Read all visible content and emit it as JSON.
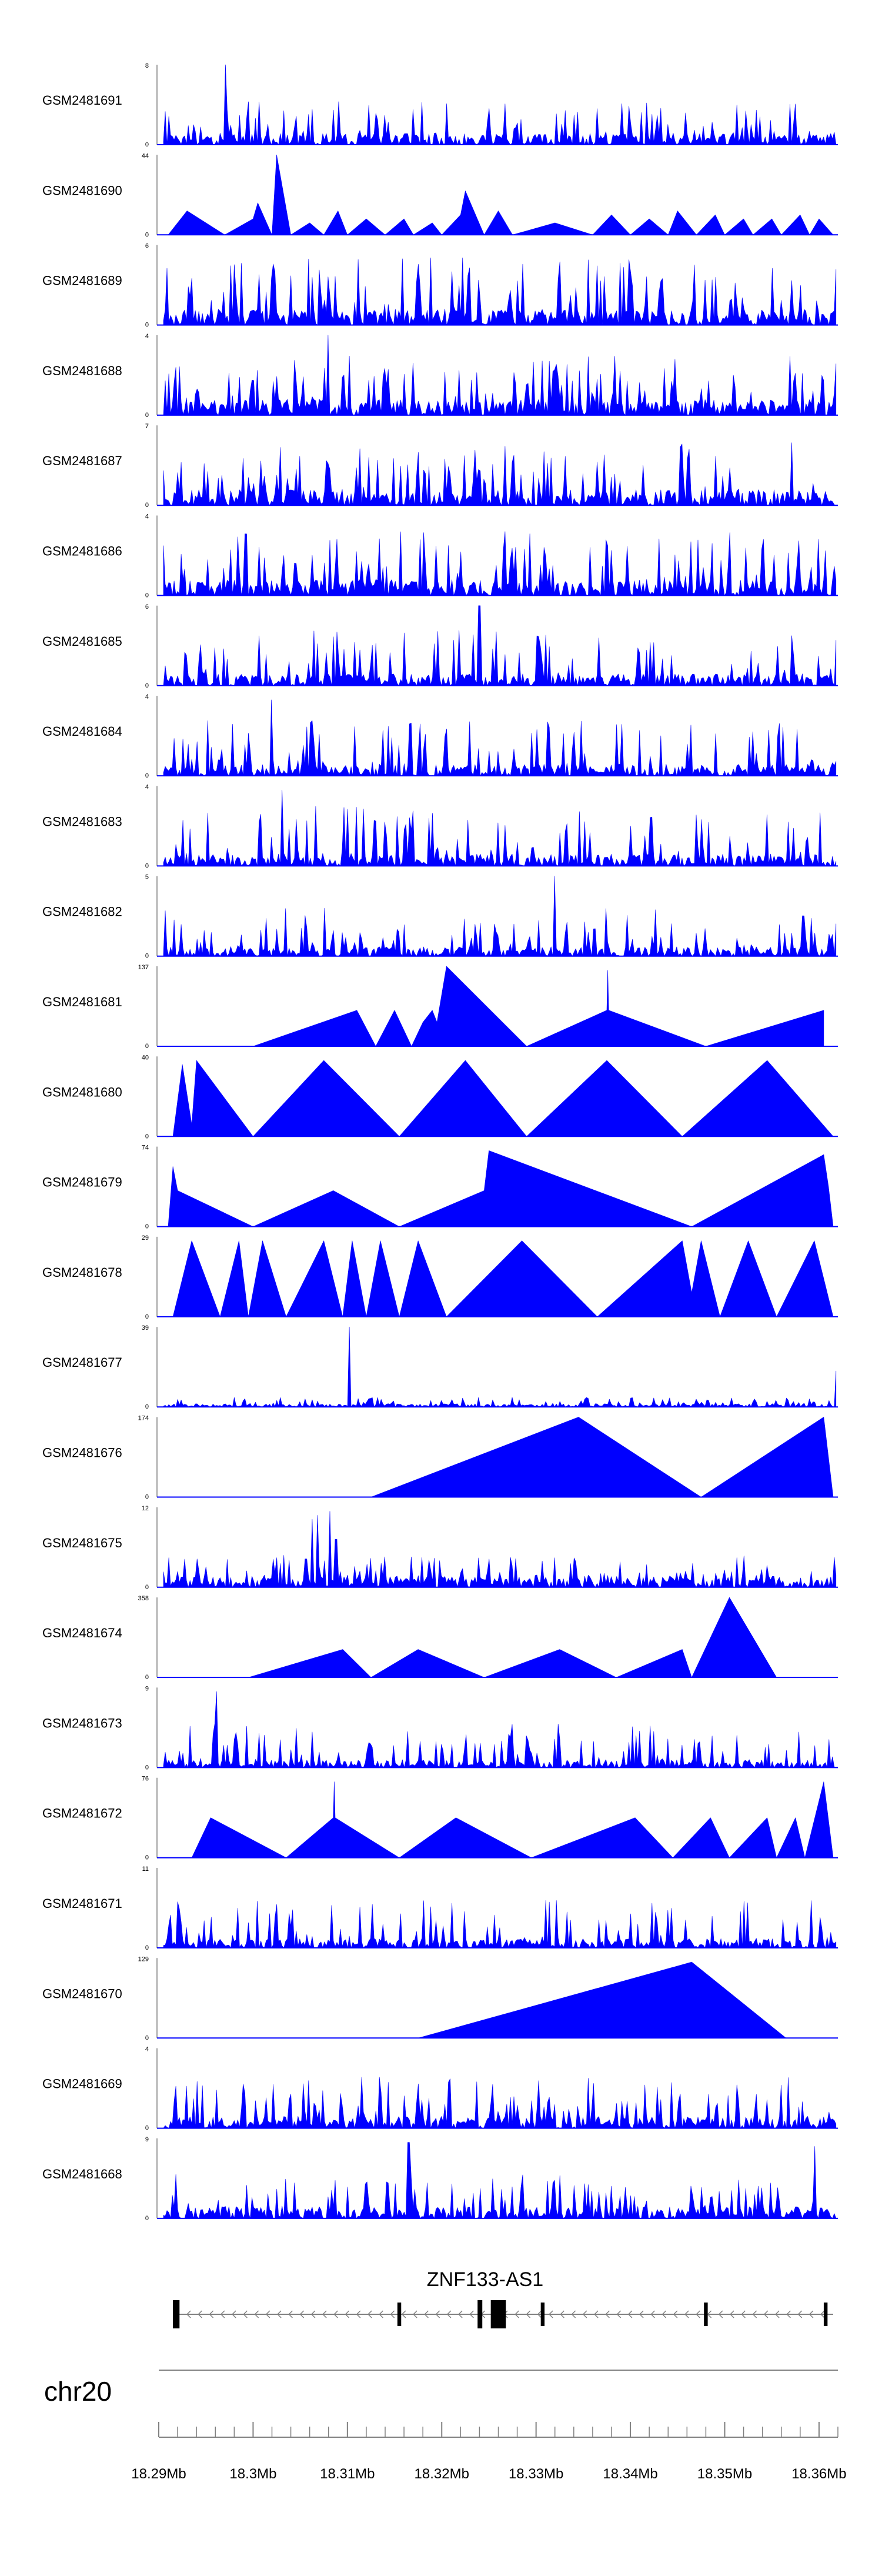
{
  "chart_data": {
    "type": "area",
    "tracks": [
      {
        "name": "GSM2481691",
        "ymax": "8",
        "ymin": "0",
        "kind": "dense",
        "base": 0.15,
        "spike": 0.55,
        "seed": 91,
        "peaks": [
          [
            18.297,
            1.0
          ]
        ]
      },
      {
        "name": "GSM2481690",
        "ymax": "44",
        "ymin": "0",
        "kind": "sparse",
        "start": 18.291,
        "end": 18.3615,
        "spike": 0.25,
        "seed": 90,
        "pts": [
          [
            18.291,
            0
          ],
          [
            18.293,
            0.3
          ],
          [
            18.297,
            0
          ],
          [
            18.3,
            0.2
          ],
          [
            18.3005,
            0.4
          ],
          [
            18.302,
            0
          ],
          [
            18.3025,
            1.0
          ],
          [
            18.304,
            0
          ],
          [
            18.306,
            0.15
          ],
          [
            18.3075,
            0
          ],
          [
            18.309,
            0.3
          ],
          [
            18.31,
            0
          ],
          [
            18.312,
            0.2
          ],
          [
            18.314,
            0
          ],
          [
            18.316,
            0.2
          ],
          [
            18.317,
            0
          ],
          [
            18.319,
            0.15
          ],
          [
            18.32,
            0
          ],
          [
            18.322,
            0.25
          ],
          [
            18.3225,
            0.55
          ],
          [
            18.3245,
            0
          ],
          [
            18.326,
            0.3
          ],
          [
            18.3275,
            0
          ],
          [
            18.332,
            0.15
          ],
          [
            18.336,
            0
          ],
          [
            18.338,
            0.25
          ],
          [
            18.34,
            0
          ],
          [
            18.342,
            0.2
          ],
          [
            18.344,
            0
          ],
          [
            18.345,
            0.3
          ],
          [
            18.347,
            0
          ],
          [
            18.349,
            0.25
          ],
          [
            18.35,
            0
          ],
          [
            18.352,
            0.2
          ],
          [
            18.353,
            0
          ],
          [
            18.355,
            0.2
          ],
          [
            18.356,
            0
          ],
          [
            18.358,
            0.25
          ],
          [
            18.359,
            0
          ],
          [
            18.36,
            0.2
          ],
          [
            18.3615,
            0
          ]
        ]
      },
      {
        "name": "GSM2481689",
        "ymax": "6",
        "ymin": "0",
        "kind": "dense",
        "base": 0.2,
        "spike": 0.85,
        "seed": 89,
        "peaks": []
      },
      {
        "name": "GSM2481688",
        "ymax": "4",
        "ymin": "0",
        "kind": "dense",
        "base": 0.2,
        "spike": 0.75,
        "seed": 88,
        "peaks": [
          [
            18.308,
            1.0
          ]
        ]
      },
      {
        "name": "GSM2481687",
        "ymax": "7",
        "ymin": "0",
        "kind": "dense",
        "base": 0.2,
        "spike": 0.8,
        "seed": 87,
        "peaks": []
      },
      {
        "name": "GSM2481686",
        "ymax": "4",
        "ymin": "0",
        "kind": "dense",
        "base": 0.2,
        "spike": 0.8,
        "seed": 86,
        "peaks": []
      },
      {
        "name": "GSM2481685",
        "ymax": "6",
        "ymin": "0",
        "kind": "dense",
        "base": 0.15,
        "spike": 0.7,
        "seed": 85,
        "peaks": [
          [
            18.324,
            1.0
          ]
        ]
      },
      {
        "name": "GSM2481684",
        "ymax": "4",
        "ymin": "0",
        "kind": "dense",
        "base": 0.15,
        "spike": 0.7,
        "seed": 84,
        "peaks": [
          [
            18.302,
            0.95
          ]
        ]
      },
      {
        "name": "GSM2481683",
        "ymax": "4",
        "ymin": "0",
        "kind": "dense",
        "base": 0.15,
        "spike": 0.75,
        "seed": 83,
        "peaks": [
          [
            18.303,
            0.95
          ]
        ]
      },
      {
        "name": "GSM2481682",
        "ymax": "5",
        "ymin": "0",
        "kind": "dense",
        "base": 0.12,
        "spike": 0.6,
        "seed": 82,
        "peaks": [
          [
            18.332,
            1.0
          ]
        ]
      },
      {
        "name": "GSM2481681",
        "ymax": "137",
        "ymin": "0",
        "kind": "poly",
        "pts": [
          [
            18.3,
            0
          ],
          [
            18.311,
            0.45
          ],
          [
            18.313,
            0
          ],
          [
            18.315,
            0.45
          ],
          [
            18.3168,
            0
          ],
          [
            18.318,
            0.3
          ],
          [
            18.319,
            0.45
          ],
          [
            18.3195,
            0.3
          ],
          [
            18.3205,
            1.0
          ],
          [
            18.329,
            0
          ],
          [
            18.3375,
            0.45
          ],
          [
            18.3376,
            0.95
          ],
          [
            18.3377,
            0.45
          ],
          [
            18.348,
            0
          ],
          [
            18.3605,
            0.45
          ],
          [
            18.3605,
            0
          ]
        ]
      },
      {
        "name": "GSM2481680",
        "ymax": "40",
        "ymin": "0",
        "kind": "poly",
        "pts": [
          [
            18.2915,
            0
          ],
          [
            18.2925,
            0.9
          ],
          [
            18.2935,
            0.15
          ],
          [
            18.294,
            0.95
          ],
          [
            18.3,
            0
          ],
          [
            18.3075,
            0.95
          ],
          [
            18.3155,
            0
          ],
          [
            18.3225,
            0.95
          ],
          [
            18.329,
            0
          ],
          [
            18.3375,
            0.95
          ],
          [
            18.3455,
            0
          ],
          [
            18.3545,
            0.95
          ],
          [
            18.3615,
            0
          ]
        ]
      },
      {
        "name": "GSM2481679",
        "ymax": "74",
        "ymin": "0",
        "kind": "poly",
        "pts": [
          [
            18.291,
            0
          ],
          [
            18.2915,
            0.75
          ],
          [
            18.292,
            0.45
          ],
          [
            18.3,
            0
          ],
          [
            18.3085,
            0.45
          ],
          [
            18.3155,
            0
          ],
          [
            18.3245,
            0.45
          ],
          [
            18.325,
            0.95
          ],
          [
            18.3465,
            0
          ],
          [
            18.3605,
            0.9
          ],
          [
            18.361,
            0.5
          ],
          [
            18.3615,
            0
          ]
        ]
      },
      {
        "name": "GSM2481678",
        "ymax": "29",
        "ymin": "0",
        "kind": "poly",
        "pts": [
          [
            18.2915,
            0
          ],
          [
            18.2935,
            0.95
          ],
          [
            18.2965,
            0
          ],
          [
            18.2985,
            0.95
          ],
          [
            18.2995,
            0
          ],
          [
            18.301,
            0.95
          ],
          [
            18.3035,
            0
          ],
          [
            18.3075,
            0.95
          ],
          [
            18.3095,
            0
          ],
          [
            18.3105,
            0.95
          ],
          [
            18.312,
            0
          ],
          [
            18.3135,
            0.95
          ],
          [
            18.3155,
            0
          ],
          [
            18.3175,
            0.95
          ],
          [
            18.3205,
            0
          ],
          [
            18.3285,
            0.95
          ],
          [
            18.3365,
            0
          ],
          [
            18.3455,
            0.95
          ],
          [
            18.3465,
            0.3
          ],
          [
            18.3475,
            0.95
          ],
          [
            18.3495,
            0
          ],
          [
            18.3525,
            0.95
          ],
          [
            18.3555,
            0
          ],
          [
            18.3595,
            0.95
          ],
          [
            18.3615,
            0
          ]
        ]
      },
      {
        "name": "GSM2481677",
        "ymax": "39",
        "ymin": "0",
        "kind": "dense",
        "base": 0.04,
        "spike": 0.12,
        "seed": 77,
        "peaks": [
          [
            18.3102,
            1.0
          ],
          [
            18.3618,
            0.45
          ]
        ]
      },
      {
        "name": "GSM2481676",
        "ymax": "174",
        "ymin": "0",
        "kind": "poly",
        "pts": [
          [
            18.3125,
            0
          ],
          [
            18.3345,
            1.0
          ],
          [
            18.3475,
            0
          ],
          [
            18.3605,
            1.0
          ],
          [
            18.3615,
            0
          ]
        ]
      },
      {
        "name": "GSM2481675",
        "ymax": "12",
        "ymin": "0",
        "kind": "dense",
        "base": 0.15,
        "spike": 0.4,
        "seed": 75,
        "peaks": [
          [
            18.3082,
            0.95
          ],
          [
            18.3088,
            0.6
          ],
          [
            18.3068,
            0.9
          ],
          [
            18.3062,
            0.85
          ]
        ]
      },
      {
        "name": "GSM2481674",
        "ymax": "358",
        "ymin": "0",
        "kind": "poly",
        "pts": [
          [
            18.2995,
            0
          ],
          [
            18.3095,
            0.35
          ],
          [
            18.3125,
            0
          ],
          [
            18.3175,
            0.35
          ],
          [
            18.3245,
            0
          ],
          [
            18.3325,
            0.35
          ],
          [
            18.3385,
            0
          ],
          [
            18.3455,
            0.35
          ],
          [
            18.3465,
            0
          ],
          [
            18.3505,
            1.0
          ],
          [
            18.3555,
            0
          ]
        ]
      },
      {
        "name": "GSM2481673",
        "ymax": "9",
        "ymin": "0",
        "kind": "dense",
        "base": 0.1,
        "spike": 0.55,
        "seed": 73,
        "peaks": [
          [
            18.2962,
            0.95
          ]
        ]
      },
      {
        "name": "GSM2481672",
        "ymax": "76",
        "ymin": "0",
        "kind": "poly",
        "pts": [
          [
            18.2935,
            0
          ],
          [
            18.2955,
            0.5
          ],
          [
            18.3035,
            0
          ],
          [
            18.3085,
            0.5
          ],
          [
            18.3086,
            0.95
          ],
          [
            18.3087,
            0.5
          ],
          [
            18.3155,
            0
          ],
          [
            18.3215,
            0.5
          ],
          [
            18.3295,
            0
          ],
          [
            18.3405,
            0.5
          ],
          [
            18.3445,
            0
          ],
          [
            18.3485,
            0.5
          ],
          [
            18.3505,
            0
          ],
          [
            18.3545,
            0.5
          ],
          [
            18.3555,
            0
          ],
          [
            18.3575,
            0.5
          ],
          [
            18.3585,
            0
          ],
          [
            18.3605,
            0.95
          ],
          [
            18.3615,
            0
          ]
        ]
      },
      {
        "name": "GSM2481671",
        "ymax": "11",
        "ymin": "0",
        "kind": "dense",
        "base": 0.12,
        "spike": 0.6,
        "seed": 71,
        "peaks": []
      },
      {
        "name": "GSM2481670",
        "ymax": "129",
        "ymin": "0",
        "kind": "poly",
        "pts": [
          [
            18.3175,
            0
          ],
          [
            18.3465,
            0.95
          ],
          [
            18.3565,
            0
          ]
        ]
      },
      {
        "name": "GSM2481669",
        "ymax": "4",
        "ymin": "0",
        "kind": "dense",
        "base": 0.15,
        "spike": 0.65,
        "seed": 69,
        "peaks": []
      },
      {
        "name": "GSM2481668",
        "ymax": "9",
        "ymin": "0",
        "kind": "dense",
        "base": 0.15,
        "spike": 0.55,
        "seed": 68,
        "peaks": [
          [
            18.3165,
            0.95
          ],
          [
            18.3595,
            0.9
          ]
        ]
      }
    ],
    "gene": {
      "label": "ZNF133-AS1",
      "start": 18.2915,
      "end": 18.3615,
      "exons": [
        [
          18.2915,
          18.2922
        ],
        [
          18.3153,
          18.3157
        ],
        [
          18.3238,
          18.3243
        ],
        [
          18.3252,
          18.3268
        ],
        [
          18.3305,
          18.3309
        ],
        [
          18.3478,
          18.3482
        ],
        [
          18.3605,
          18.3609
        ]
      ],
      "strand": "-"
    },
    "chromosome": "chr20",
    "x_axis": {
      "min": 18.29,
      "max": 18.362,
      "tick_labels": [
        "18.29Mb",
        "18.3Mb",
        "18.31Mb",
        "18.32Mb",
        "18.33Mb",
        "18.34Mb",
        "18.35Mb",
        "18.36Mb"
      ],
      "tick_values": [
        18.29,
        18.3,
        18.31,
        18.32,
        18.33,
        18.34,
        18.35,
        18.36
      ],
      "minor_step": 0.002
    },
    "series_color": "#0000FF",
    "grid": false
  }
}
